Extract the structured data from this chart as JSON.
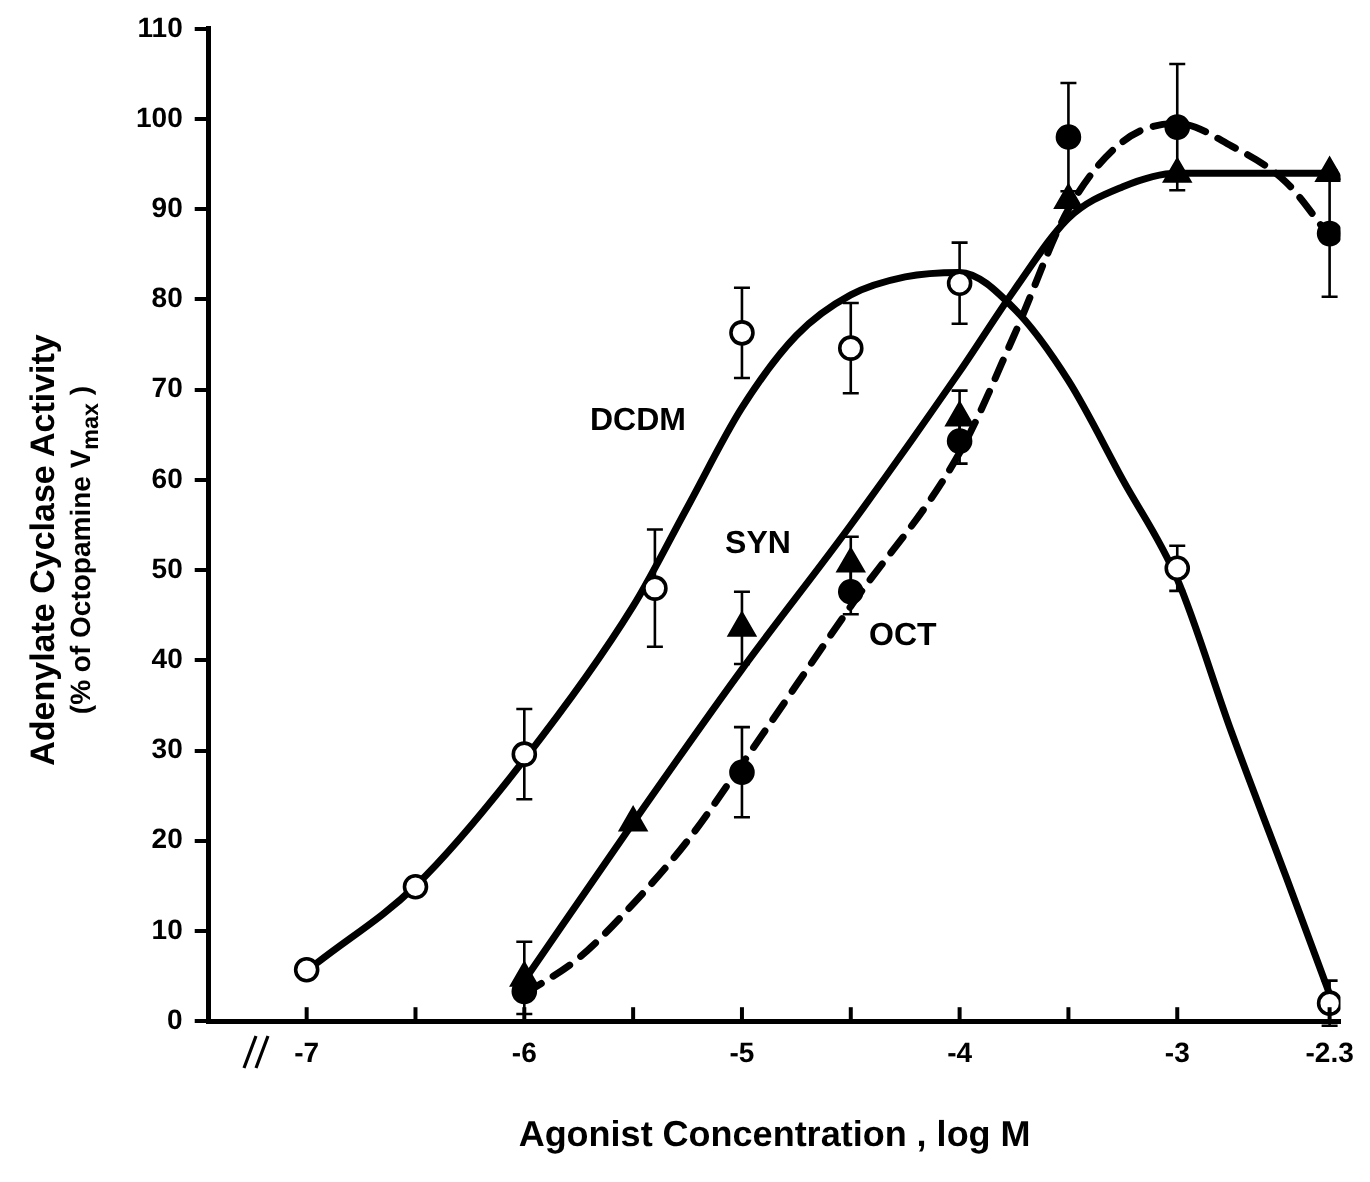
{
  "chart_data": {
    "type": "scatter",
    "xlabel": "Agonist Concentration , log M",
    "ylabel": "Adenylate Cyclase Activity\n(% of Octopamine V$_{max}$ )",
    "xlim": [
      -7.45,
      -2.25
    ],
    "ylim": [
      0,
      110
    ],
    "xticks": [
      -7,
      {
        "value": -6.5,
        "label": null
      },
      -6,
      {
        "value": -5.5,
        "label": null
      },
      -5,
      {
        "value": -4.5,
        "label": null
      },
      -4,
      {
        "value": -3.5,
        "label": null
      },
      -3,
      -2.3
    ],
    "yticks": [
      0,
      10,
      20,
      30,
      40,
      50,
      60,
      70,
      80,
      90,
      100,
      110
    ],
    "series": [
      {
        "name": "DCDM",
        "type": "scatter",
        "marker": "circle",
        "color": "#ffffff",
        "x": [
          -7,
          -6.5,
          -6,
          -5.4,
          -5,
          -4.5,
          -4,
          -3,
          -2.3
        ],
        "values": [
          5.7,
          14.9,
          29.6,
          48,
          76.3,
          74.6,
          81.8,
          50.2,
          2
        ],
        "errors": [
          null,
          null,
          5,
          6.5,
          5,
          5,
          4.5,
          2.5,
          2.5
        ]
      },
      {
        "name": "SYN",
        "type": "scatter",
        "marker": "triangle",
        "color": "#000000",
        "x": [
          -6,
          -5.5,
          -5,
          -4.5,
          -4,
          -3.5,
          -3,
          -2.3
        ],
        "values": [
          4.8,
          22,
          43.6,
          50.7,
          66.9,
          91,
          93.9,
          94
        ],
        "errors": [
          4,
          null,
          4,
          3,
          3,
          null,
          null,
          null
        ]
      },
      {
        "name": "OCT",
        "type": "scatter",
        "marker": "circle",
        "color": "#000000",
        "x": [
          -6,
          -5,
          -4.5,
          -4,
          -3.5,
          -3,
          -2.3
        ],
        "values": [
          3.3,
          27.6,
          47.6,
          64.3,
          98,
          99.1,
          87.3
        ],
        "errors": [
          null,
          5,
          2.5,
          2.5,
          6,
          7,
          7
        ]
      },
      {
        "type": "line",
        "line_style": "solid",
        "color": "#000000",
        "x": [
          -6.95,
          -6.5,
          -6,
          -5.5,
          -5.25,
          -5,
          -4.75,
          -4.5,
          -4.25,
          -4,
          -3.75,
          -3.5,
          -3.25,
          -3,
          -2.75,
          -2.5,
          -2.3
        ],
        "values": [
          6.5,
          15,
          29,
          46,
          57,
          68,
          76,
          80.5,
          82.5,
          83,
          79,
          71,
          60,
          49,
          32,
          16,
          3
        ]
      },
      {
        "type": "line",
        "line_style": "solid",
        "color": "#000000",
        "x": [
          -6,
          -5.5,
          -5,
          -4.5,
          -4,
          -3.75,
          -3.5,
          -3.25,
          -3,
          -2.3
        ],
        "values": [
          4.5,
          22,
          39,
          55,
          72,
          81,
          89,
          92.5,
          94,
          94
        ]
      },
      {
        "type": "line",
        "line_style": "dashed",
        "color": "#000000",
        "x": [
          -6,
          -5.75,
          -5.5,
          -5.25,
          -5,
          -4.5,
          -4,
          -3.75,
          -3.5,
          -3.25,
          -3,
          -2.75,
          -2.5,
          -2.3
        ],
        "values": [
          3,
          7,
          13,
          20,
          28.5,
          46,
          63,
          76,
          90,
          97.5,
          99.5,
          97,
          93,
          87
        ]
      }
    ]
  }
}
